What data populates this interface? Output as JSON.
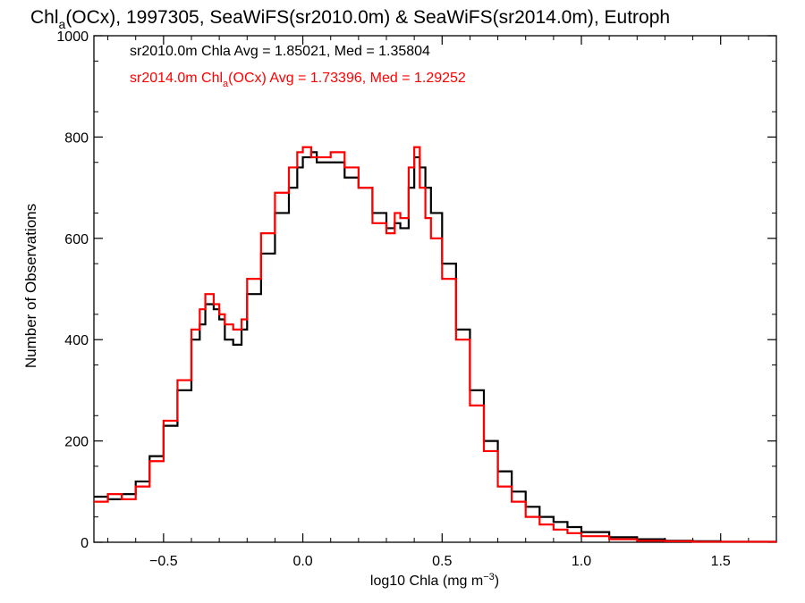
{
  "chart_data": {
    "type": "line",
    "title_main": "Chl",
    "title_sub": "a",
    "title_rest": "(OCx), 1997305, SeaWiFS(sr2010.0m) & SeaWiFS(sr2014.0m), Eutroph",
    "xlabel_main": "log10 Chla (mg m",
    "xlabel_sup": "−3",
    "xlabel_end": ")",
    "ylabel": "Number of Observations",
    "xlim": [
      -0.75,
      1.7
    ],
    "ylim": [
      0,
      1000
    ],
    "x_ticks": [
      -0.5,
      0.0,
      0.5,
      1.0,
      1.5
    ],
    "x_tick_labels": [
      "−0.5",
      "0.0",
      "0.5",
      "1.0",
      "1.5"
    ],
    "y_ticks": [
      0,
      200,
      400,
      600,
      800,
      1000
    ],
    "y_tick_labels": [
      "0",
      "200",
      "400",
      "600",
      "800",
      "1000"
    ],
    "legend_placement": "top-left",
    "legend": [
      {
        "text": "sr2010.0m Chla Avg = 1.85021, Med = 1.35804",
        "color": "#000000"
      },
      {
        "text_main": "sr2014.0m Chl",
        "text_sub": "a",
        "text_rest": "(OCx) Avg = 1.73396, Med = 1.29252",
        "color": "#ff0000"
      }
    ],
    "series": [
      {
        "color": "#000000",
        "x": [
          -0.75,
          -0.7,
          -0.65,
          -0.6,
          -0.55,
          -0.5,
          -0.45,
          -0.4,
          -0.37,
          -0.35,
          -0.32,
          -0.3,
          -0.28,
          -0.25,
          -0.22,
          -0.2,
          -0.15,
          -0.1,
          -0.05,
          -0.02,
          0.0,
          0.03,
          0.05,
          0.1,
          0.15,
          0.2,
          0.25,
          0.3,
          0.33,
          0.35,
          0.38,
          0.4,
          0.42,
          0.44,
          0.46,
          0.5,
          0.55,
          0.6,
          0.65,
          0.7,
          0.75,
          0.8,
          0.85,
          0.9,
          0.95,
          1.0,
          1.1,
          1.2,
          1.3,
          1.4,
          1.5,
          1.7
        ],
        "y": [
          90,
          85,
          95,
          120,
          170,
          230,
          300,
          400,
          430,
          470,
          460,
          440,
          400,
          390,
          420,
          490,
          570,
          650,
          700,
          740,
          760,
          770,
          750,
          750,
          720,
          700,
          650,
          620,
          630,
          620,
          700,
          760,
          740,
          700,
          650,
          550,
          420,
          300,
          200,
          140,
          100,
          70,
          50,
          40,
          30,
          20,
          10,
          6,
          3,
          2,
          1,
          1
        ]
      },
      {
        "color": "#ff0000",
        "x": [
          -0.75,
          -0.7,
          -0.65,
          -0.6,
          -0.55,
          -0.5,
          -0.45,
          -0.4,
          -0.37,
          -0.35,
          -0.32,
          -0.3,
          -0.28,
          -0.25,
          -0.22,
          -0.2,
          -0.15,
          -0.1,
          -0.05,
          -0.02,
          0.0,
          0.03,
          0.05,
          0.1,
          0.15,
          0.2,
          0.25,
          0.3,
          0.33,
          0.35,
          0.38,
          0.4,
          0.42,
          0.44,
          0.46,
          0.5,
          0.55,
          0.6,
          0.65,
          0.7,
          0.75,
          0.8,
          0.85,
          0.9,
          0.95,
          1.0,
          1.1,
          1.2,
          1.3,
          1.4,
          1.5,
          1.7
        ],
        "y": [
          80,
          95,
          85,
          110,
          160,
          240,
          320,
          420,
          460,
          490,
          470,
          450,
          430,
          420,
          440,
          520,
          610,
          690,
          740,
          770,
          780,
          760,
          760,
          770,
          740,
          700,
          630,
          610,
          650,
          640,
          740,
          780,
          700,
          640,
          600,
          520,
          400,
          270,
          180,
          110,
          80,
          50,
          35,
          25,
          18,
          12,
          6,
          3,
          2,
          1,
          1,
          1
        ]
      }
    ]
  }
}
